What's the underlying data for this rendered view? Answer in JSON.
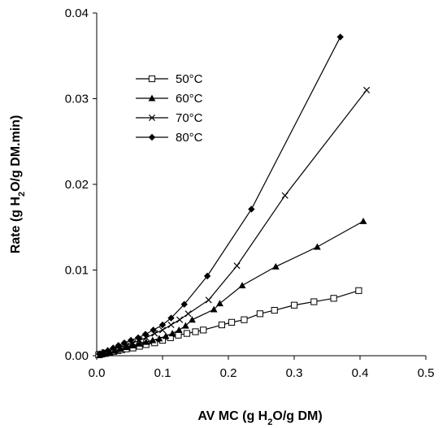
{
  "chart_data": {
    "type": "line",
    "xlabel": "AV MC (g H2O/g DM)",
    "ylabel": "Rate (g H2O/g DM.min)",
    "xlim": [
      0,
      0.5
    ],
    "ylim": [
      0,
      0.04
    ],
    "x_ticks": [
      "0.0",
      "0.1",
      "0.2",
      "0.3",
      "0.4",
      "0.5"
    ],
    "y_ticks": [
      "0.00",
      "0.01",
      "0.02",
      "0.03",
      "0.04"
    ],
    "grid": false,
    "legend_position": "upper-left",
    "series": [
      {
        "name": "50°C",
        "marker": "square-open",
        "points": [
          [
            0.003,
            0.0001
          ],
          [
            0.008,
            0.0002
          ],
          [
            0.014,
            0.0003
          ],
          [
            0.02,
            0.0004
          ],
          [
            0.026,
            0.0005
          ],
          [
            0.032,
            0.0006
          ],
          [
            0.038,
            0.0007
          ],
          [
            0.045,
            0.0008
          ],
          [
            0.055,
            0.0009
          ],
          [
            0.065,
            0.0011
          ],
          [
            0.075,
            0.0013
          ],
          [
            0.088,
            0.0015
          ],
          [
            0.1,
            0.0018
          ],
          [
            0.112,
            0.0021
          ],
          [
            0.124,
            0.0024
          ],
          [
            0.137,
            0.0026
          ],
          [
            0.15,
            0.0028
          ],
          [
            0.162,
            0.003
          ],
          [
            0.19,
            0.0036
          ],
          [
            0.205,
            0.0039
          ],
          [
            0.224,
            0.0042
          ],
          [
            0.248,
            0.0049
          ],
          [
            0.27,
            0.0053
          ],
          [
            0.3,
            0.0059
          ],
          [
            0.33,
            0.0063
          ],
          [
            0.36,
            0.0067
          ],
          [
            0.398,
            0.0076
          ]
        ]
      },
      {
        "name": "60°C",
        "marker": "triangle-filled",
        "points": [
          [
            0.005,
            0.0001
          ],
          [
            0.012,
            0.0002
          ],
          [
            0.02,
            0.0004
          ],
          [
            0.028,
            0.0006
          ],
          [
            0.036,
            0.0008
          ],
          [
            0.045,
            0.001
          ],
          [
            0.055,
            0.0012
          ],
          [
            0.065,
            0.0014
          ],
          [
            0.075,
            0.0016
          ],
          [
            0.085,
            0.0018
          ],
          [
            0.095,
            0.002
          ],
          [
            0.105,
            0.0023
          ],
          [
            0.115,
            0.0026
          ],
          [
            0.125,
            0.003
          ],
          [
            0.135,
            0.0035
          ],
          [
            0.145,
            0.0042
          ],
          [
            0.178,
            0.0054
          ],
          [
            0.187,
            0.0061
          ],
          [
            0.221,
            0.0082
          ],
          [
            0.272,
            0.0104
          ],
          [
            0.335,
            0.0127
          ],
          [
            0.405,
            0.0157
          ]
        ]
      },
      {
        "name": "70°C",
        "marker": "x",
        "points": [
          [
            0.005,
            0.0002
          ],
          [
            0.012,
            0.0004
          ],
          [
            0.02,
            0.0006
          ],
          [
            0.028,
            0.0008
          ],
          [
            0.036,
            0.001
          ],
          [
            0.045,
            0.0012
          ],
          [
            0.055,
            0.0015
          ],
          [
            0.065,
            0.0018
          ],
          [
            0.075,
            0.0021
          ],
          [
            0.088,
            0.0026
          ],
          [
            0.1,
            0.003
          ],
          [
            0.113,
            0.0036
          ],
          [
            0.126,
            0.0042
          ],
          [
            0.139,
            0.0049
          ],
          [
            0.17,
            0.0065
          ],
          [
            0.213,
            0.0105
          ],
          [
            0.286,
            0.0187
          ],
          [
            0.41,
            0.031
          ]
        ]
      },
      {
        "name": "80°C",
        "marker": "diamond-filled",
        "points": [
          [
            0.004,
            0.0002
          ],
          [
            0.01,
            0.0004
          ],
          [
            0.017,
            0.0006
          ],
          [
            0.025,
            0.0009
          ],
          [
            0.033,
            0.0012
          ],
          [
            0.042,
            0.0015
          ],
          [
            0.052,
            0.0018
          ],
          [
            0.063,
            0.0021
          ],
          [
            0.074,
            0.0025
          ],
          [
            0.086,
            0.003
          ],
          [
            0.1,
            0.0036
          ],
          [
            0.113,
            0.0044
          ],
          [
            0.133,
            0.006
          ],
          [
            0.168,
            0.0093
          ],
          [
            0.235,
            0.0171
          ],
          [
            0.37,
            0.0372
          ]
        ]
      }
    ]
  }
}
